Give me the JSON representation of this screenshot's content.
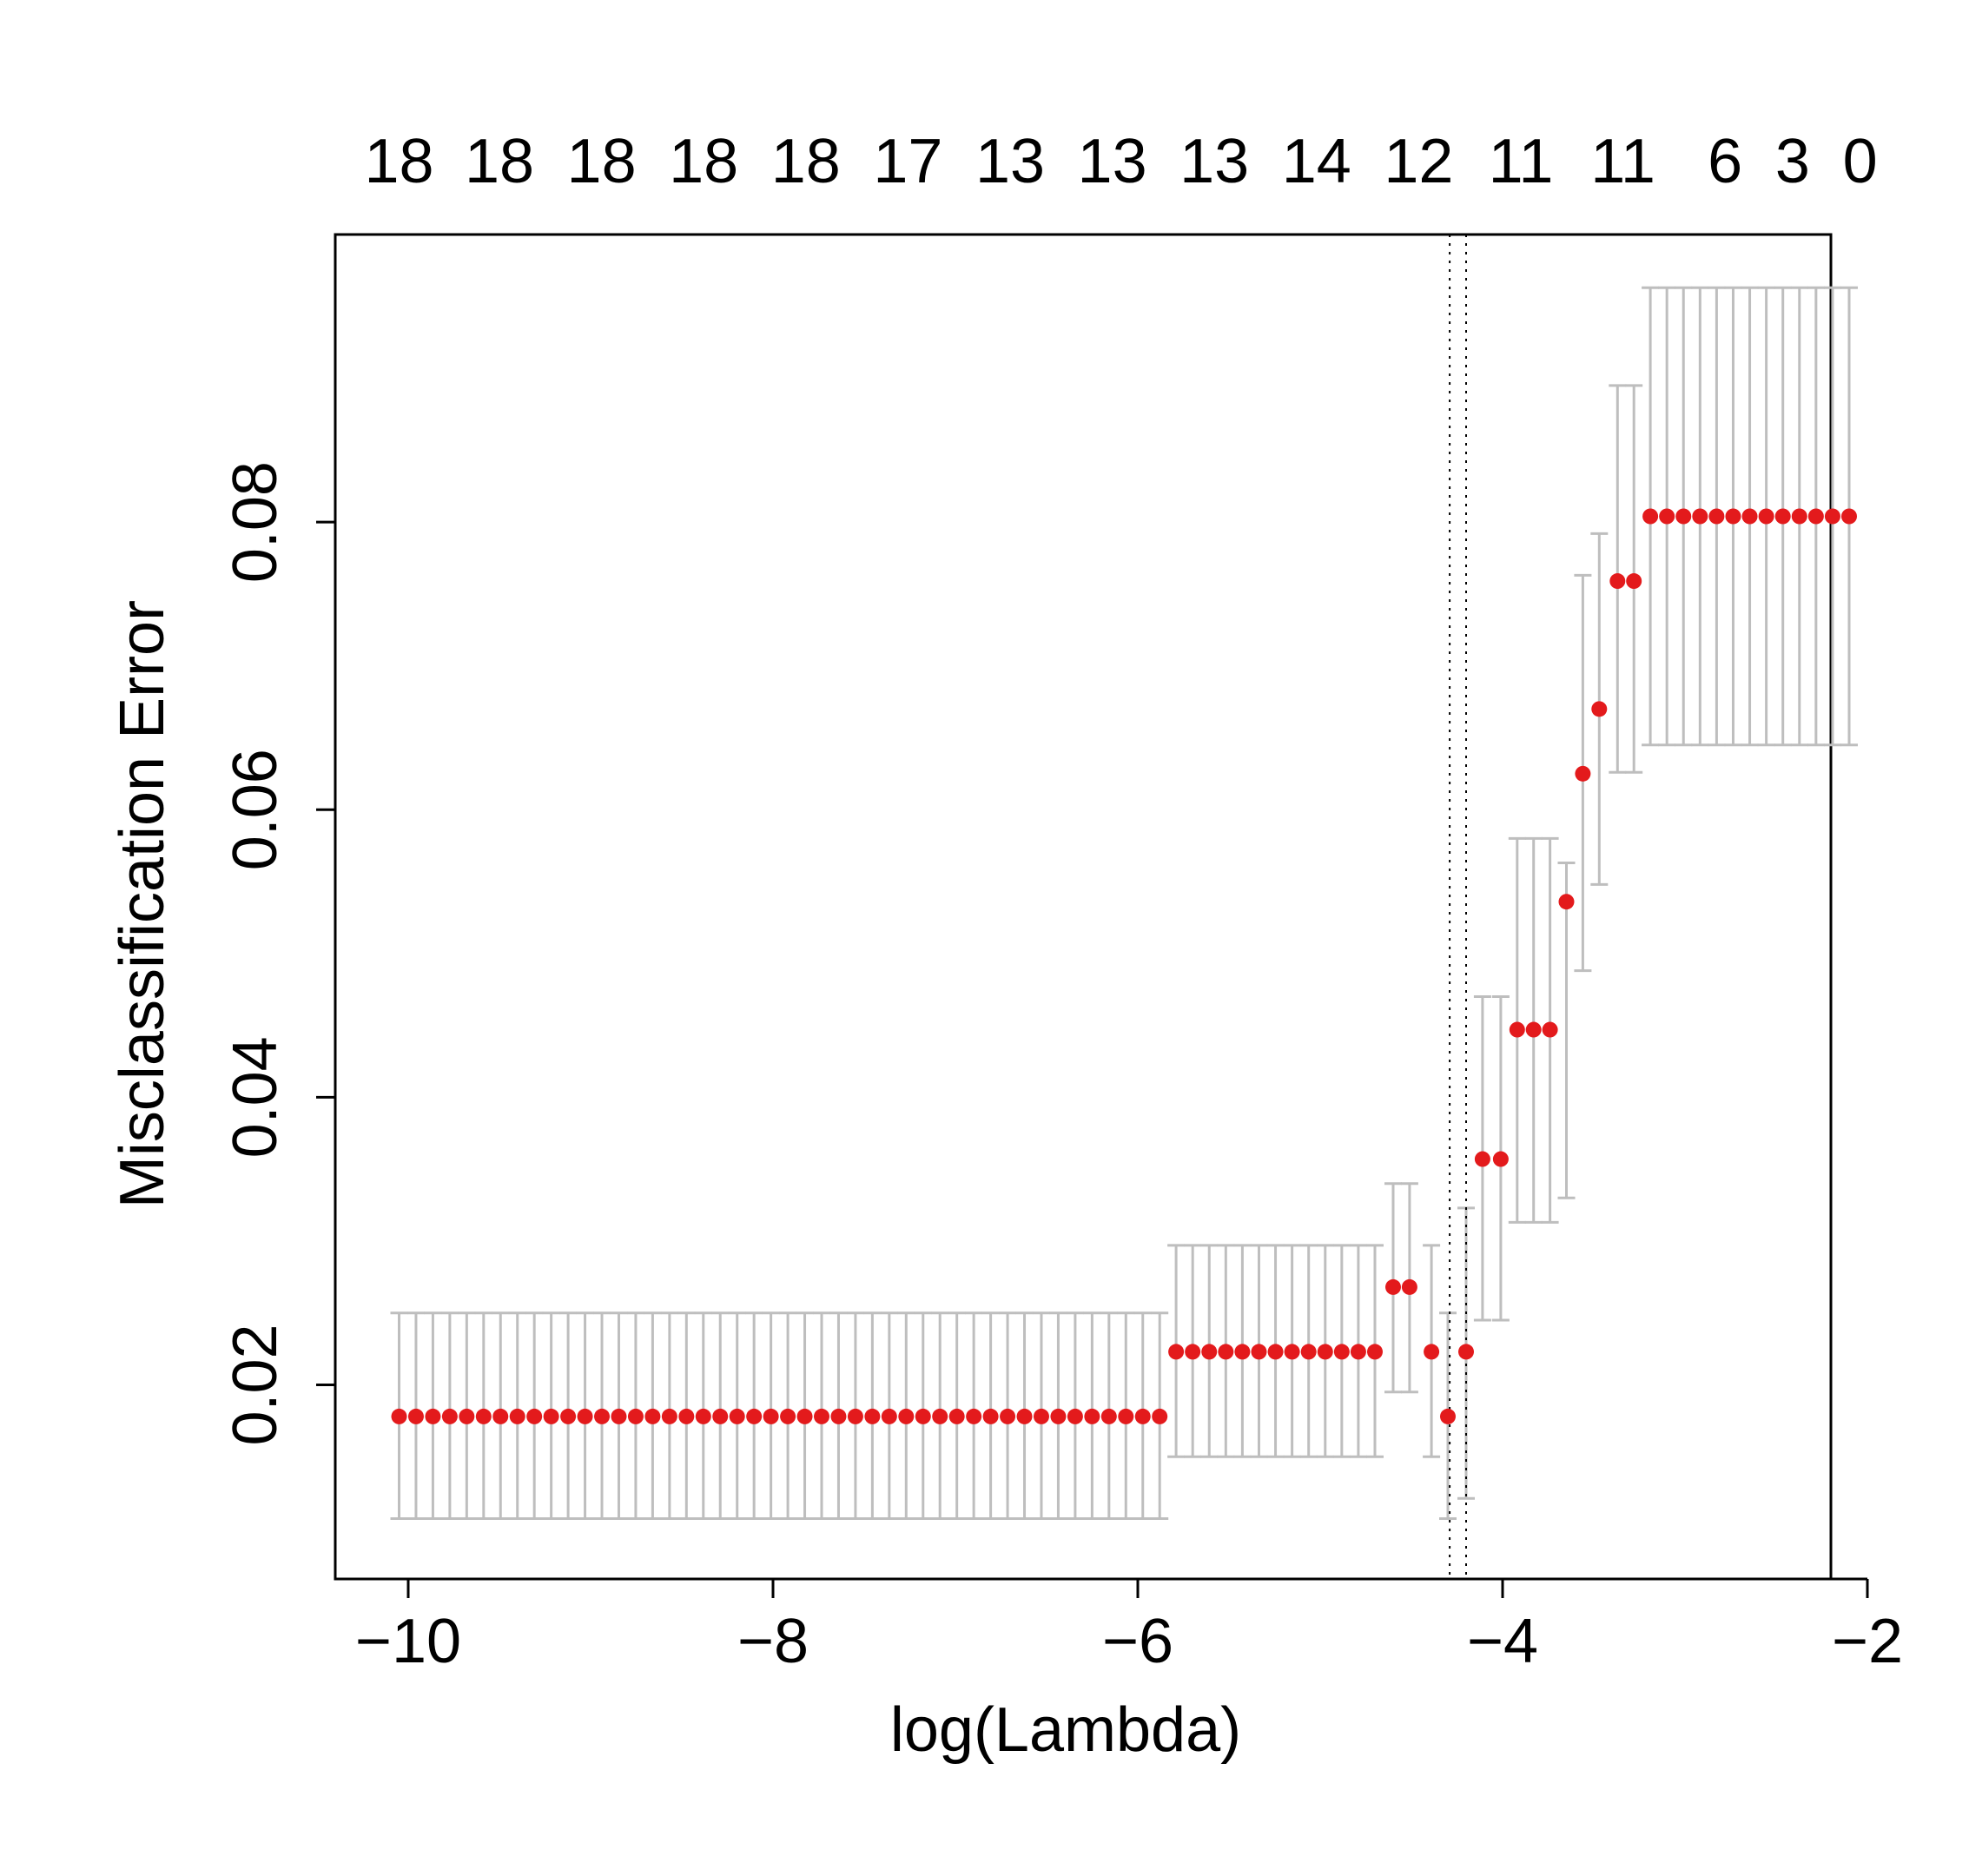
{
  "chart_data": {
    "type": "scatter",
    "xlabel": "log(Lambda)",
    "ylabel": "Misclassification Error",
    "xlim": [
      -10.4,
      -2.2
    ],
    "ylim": [
      0.0065,
      0.1
    ],
    "x_ticks": [
      -10,
      -8,
      -6,
      -4,
      -2
    ],
    "x_tick_labels": [
      "−10",
      "−8",
      "−6",
      "−4",
      "−2"
    ],
    "y_ticks": [
      0.02,
      0.04,
      0.06,
      0.08
    ],
    "y_tick_labels": [
      "0.02",
      "0.04",
      "0.06",
      "0.08"
    ],
    "top_axis_labels": [
      {
        "x": -10.05,
        "label": "18"
      },
      {
        "x": -9.5,
        "label": "18"
      },
      {
        "x": -8.94,
        "label": "18"
      },
      {
        "x": -8.38,
        "label": "18"
      },
      {
        "x": -7.82,
        "label": "18"
      },
      {
        "x": -7.26,
        "label": "17"
      },
      {
        "x": -6.7,
        "label": "13"
      },
      {
        "x": -6.14,
        "label": "13"
      },
      {
        "x": -5.58,
        "label": "13"
      },
      {
        "x": -5.02,
        "label": "14"
      },
      {
        "x": -4.46,
        "label": "12"
      },
      {
        "x": -3.9,
        "label": "11"
      },
      {
        "x": -3.34,
        "label": "11"
      },
      {
        "x": -2.78,
        "label": "6"
      },
      {
        "x": -2.41,
        "label": "3"
      },
      {
        "x": -2.04,
        "label": "0"
      }
    ],
    "vertical_lines": [
      -4.29,
      -4.2
    ],
    "point_color": "#e31a1c",
    "errorbar_color": "#bebebe",
    "segments": [
      {
        "x_from": -10.05,
        "x_to": -5.88,
        "count": 46,
        "y": 0.0178,
        "lo": 0.0107,
        "hi": 0.025
      },
      {
        "x_from": -5.79,
        "x_to": -4.7,
        "count": 13,
        "y": 0.0223,
        "lo": 0.015,
        "hi": 0.0297
      },
      {
        "x_from": -4.6,
        "x_to": -4.51,
        "count": 2,
        "y": 0.0268,
        "lo": 0.0195,
        "hi": 0.034
      },
      {
        "x_from": -4.39,
        "x_to": -4.39,
        "count": 1,
        "y": 0.0223,
        "lo": 0.015,
        "hi": 0.0297
      },
      {
        "x_from": -4.3,
        "x_to": -4.3,
        "count": 1,
        "y": 0.0178,
        "lo": 0.0107,
        "hi": 0.025
      },
      {
        "x_from": -4.2,
        "x_to": -4.2,
        "count": 1,
        "y": 0.0223,
        "lo": 0.0121,
        "hi": 0.0323
      },
      {
        "x_from": -4.11,
        "x_to": -4.01,
        "count": 2,
        "y": 0.0357,
        "lo": 0.0245,
        "hi": 0.047
      },
      {
        "x_from": -3.92,
        "x_to": -3.74,
        "count": 3,
        "y": 0.0447,
        "lo": 0.0313,
        "hi": 0.058
      },
      {
        "x_from": -3.65,
        "x_to": -3.65,
        "count": 1,
        "y": 0.0536,
        "lo": 0.033,
        "hi": 0.0563
      },
      {
        "x_from": -3.56,
        "x_to": -3.56,
        "count": 1,
        "y": 0.0625,
        "lo": 0.0488,
        "hi": 0.0763
      },
      {
        "x_from": -3.47,
        "x_to": -3.47,
        "count": 1,
        "y": 0.067,
        "lo": 0.0548,
        "hi": 0.0792
      },
      {
        "x_from": -3.37,
        "x_to": -3.28,
        "count": 2,
        "y": 0.0759,
        "lo": 0.0626,
        "hi": 0.0895
      },
      {
        "x_from": -3.19,
        "x_to": -2.1,
        "count": 13,
        "y": 0.0804,
        "lo": 0.0645,
        "hi": 0.0963
      }
    ]
  }
}
